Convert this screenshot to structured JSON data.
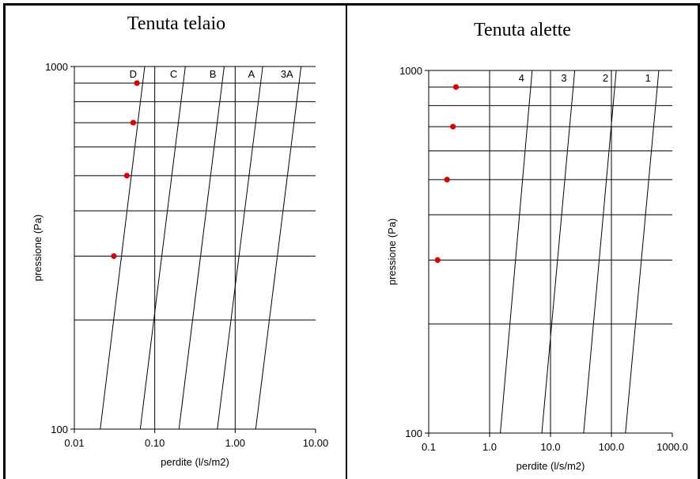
{
  "chart_data": [
    {
      "type": "scatter",
      "title": "Tenuta telaio",
      "xlabel": "perdite (l/s/m2)",
      "ylabel": "pressione (Pa)",
      "xscale": "log",
      "yscale": "log",
      "xlim": [
        0.01,
        10
      ],
      "ylim": [
        100,
        1000
      ],
      "x_ticks": [
        0.01,
        0.1,
        1,
        10
      ],
      "x_tick_labels": [
        "0.01",
        "0.10",
        "1.00",
        "10.00"
      ],
      "y_ticks": [
        100,
        1000
      ],
      "y_tick_labels": [
        "100",
        "1000"
      ],
      "grid_y": [
        200,
        300,
        400,
        500,
        600,
        700,
        800,
        900
      ],
      "grid_x": [
        0.1,
        1
      ],
      "class_lines": [
        {
          "name": "D",
          "x_at_100": 0.021,
          "x_at_1000": 0.075
        },
        {
          "name": "C",
          "x_at_100": 0.066,
          "x_at_1000": 0.24
        },
        {
          "name": "B",
          "x_at_100": 0.2,
          "x_at_1000": 0.73
        },
        {
          "name": "A",
          "x_at_100": 0.6,
          "x_at_1000": 2.2
        },
        {
          "name": "3A",
          "x_at_100": 1.8,
          "x_at_1000": 6.6
        }
      ],
      "points": {
        "color": "#dd0000",
        "x": [
          0.031,
          0.045,
          0.054,
          0.06
        ],
        "y": [
          300,
          500,
          700,
          900
        ]
      }
    },
    {
      "type": "scatter",
      "title": "Tenuta alette",
      "xlabel": "perdite (l/s/m2)",
      "ylabel": "pressione (Pa)",
      "xscale": "log",
      "yscale": "log",
      "xlim": [
        0.1,
        1000
      ],
      "ylim": [
        100,
        1000
      ],
      "x_ticks": [
        0.1,
        1,
        10,
        100,
        1000
      ],
      "x_tick_labels": [
        "0.1",
        "1.0",
        "10.0",
        "100.0",
        "1000.0"
      ],
      "y_ticks": [
        100,
        1000
      ],
      "y_tick_labels": [
        "100",
        "1000"
      ],
      "grid_y": [
        200,
        300,
        400,
        500,
        600,
        700,
        800,
        900
      ],
      "grid_x": [
        1,
        10,
        100
      ],
      "class_lines": [
        {
          "name": "4",
          "x_at_100": 1.5,
          "x_at_1000": 5
        },
        {
          "name": "3",
          "x_at_100": 7.2,
          "x_at_1000": 25
        },
        {
          "name": "2",
          "x_at_100": 35,
          "x_at_1000": 120
        },
        {
          "name": "1",
          "x_at_100": 170,
          "x_at_1000": 600
        }
      ],
      "points": {
        "color": "#dd0000",
        "x": [
          0.14,
          0.2,
          0.25,
          0.28
        ],
        "y": [
          300,
          500,
          700,
          900
        ]
      }
    }
  ]
}
